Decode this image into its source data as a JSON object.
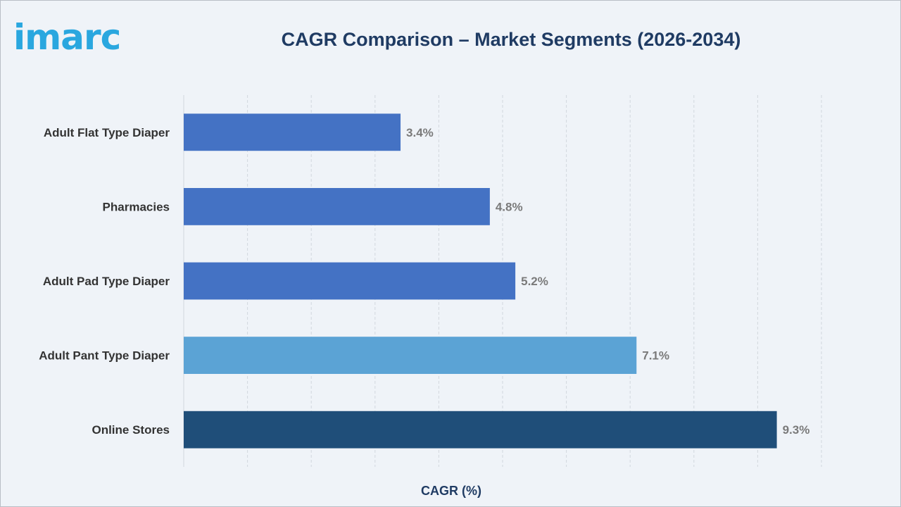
{
  "logo": {
    "text": "imarc"
  },
  "chart_data": {
    "type": "bar",
    "orientation": "horizontal",
    "title": "CAGR Comparison – Market Segments (2026-2034)",
    "xlabel": "CAGR (%)",
    "ylabel": "",
    "xlim": [
      0,
      10
    ],
    "grid": true,
    "categories": [
      "Adult Flat Type Diaper",
      "Pharmacies",
      "Adult Pad Type Diaper",
      "Adult Pant Type Diaper",
      "Online Stores"
    ],
    "values": [
      3.4,
      4.8,
      5.2,
      7.1,
      9.3
    ],
    "labels": [
      "3.4%",
      "4.8%",
      "5.2%",
      "7.1%",
      "9.3%"
    ],
    "colors": [
      "#4472c4",
      "#4472c4",
      "#4472c4",
      "#5ba3d5",
      "#1f4e79"
    ]
  }
}
